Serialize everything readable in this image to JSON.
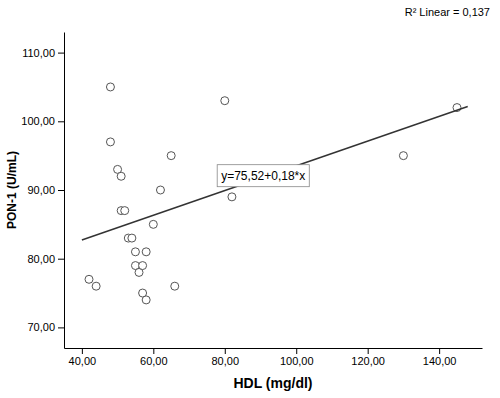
{
  "chart_data": {
    "type": "scatter",
    "x_label": "HDL (mg/dl)",
    "y_label": "PON-1 (U/mL)",
    "series": [
      {
        "type": "scatter",
        "marker": "circle",
        "color": "#555555",
        "x": [
          42,
          44,
          48,
          48,
          50,
          51,
          51,
          52,
          53,
          54,
          55,
          55,
          56,
          57,
          57,
          58,
          58,
          60,
          62,
          65,
          66,
          80,
          82,
          130,
          145
        ],
        "values": [
          77,
          76,
          105,
          97,
          93,
          92,
          87,
          87,
          83,
          83,
          81,
          79,
          78,
          79,
          75,
          74,
          81,
          85,
          90,
          95,
          76,
          103,
          89,
          95,
          102
        ]
      },
      {
        "type": "line",
        "line_style": "solid",
        "color": "#333333",
        "x": [
          40,
          148
        ],
        "values": [
          82.72,
          102.16
        ]
      }
    ],
    "annotations": [
      {
        "text": "R² Linear = 0,137"
      },
      {
        "text": "y=75,52+0,18*x",
        "x": 79,
        "y": 91.5
      }
    ],
    "xlim": [
      35,
      152
    ],
    "ylim": [
      67,
      113
    ],
    "xticks": [
      {
        "value": 40,
        "label": "40,00"
      },
      {
        "value": 60,
        "label": "60,00"
      },
      {
        "value": 80,
        "label": "80,00"
      },
      {
        "value": 100,
        "label": "100,00"
      },
      {
        "value": 120,
        "label": "120,00"
      },
      {
        "value": 140,
        "label": "140,00"
      }
    ],
    "yticks": [
      {
        "value": 70,
        "label": "70,00"
      },
      {
        "value": 80,
        "label": "80,00"
      },
      {
        "value": 90,
        "label": "90,00"
      },
      {
        "value": 100,
        "label": "100,00"
      },
      {
        "value": 110,
        "label": "110,00"
      }
    ],
    "grid": false
  }
}
